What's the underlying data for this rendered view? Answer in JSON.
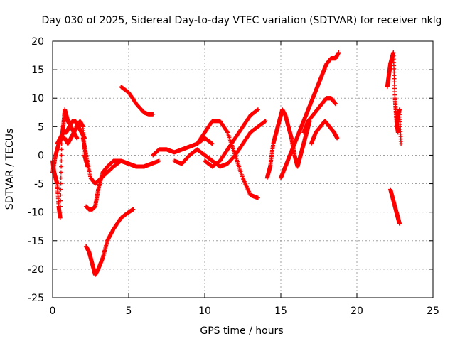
{
  "chart_data": {
    "type": "scatter",
    "title": "Day 030 of 2025, Sidereal Day-to-day VTEC variation (SDTVAR) for receiver nklg",
    "xlabel": "GPS time / hours",
    "ylabel": "SDTVAR / TECUs",
    "xlim": [
      0,
      25
    ],
    "ylim": [
      -25,
      20
    ],
    "xticks": [
      "0",
      "5",
      "10",
      "15",
      "20",
      "25"
    ],
    "yticks": [
      "-25",
      "-20",
      "-15",
      "-10",
      "-5",
      "0",
      "5",
      "10",
      "15",
      "20"
    ],
    "grid": true,
    "legend": "none",
    "marker": "plus",
    "color": "#ff0000",
    "series": [
      {
        "name": "s1",
        "x": [
          0.0,
          0.1,
          0.2,
          0.3,
          0.4,
          0.5,
          0.6,
          0.7,
          0.8,
          0.9,
          1.0,
          1.2,
          1.4,
          1.6,
          1.8,
          2.0,
          2.1,
          2.2,
          2.3
        ],
        "y": [
          -1,
          -3,
          -4,
          -5,
          -9,
          -11,
          3,
          5,
          8,
          7,
          6,
          5,
          4,
          5,
          6,
          5,
          0,
          -1,
          -2
        ]
      },
      {
        "name": "s2",
        "x": [
          0.3,
          0.5,
          0.7,
          0.9,
          1.1,
          1.3,
          1.5,
          1.7,
          1.9,
          2.1
        ],
        "y": [
          2,
          3,
          4,
          4,
          5,
          6,
          6,
          5,
          4,
          3
        ]
      },
      {
        "name": "s3",
        "x": [
          0.0,
          0.2,
          0.4,
          0.6,
          0.8,
          1.0,
          1.2,
          1.4,
          1.6
        ],
        "y": [
          -3,
          0,
          2,
          3,
          3,
          2,
          3,
          4,
          3
        ]
      },
      {
        "name": "s4",
        "x": [
          2.0,
          2.2,
          2.5,
          2.8,
          3.2,
          3.6,
          4.0,
          4.5,
          5.0,
          5.5,
          6.0,
          6.5,
          7.0
        ],
        "y": [
          3,
          0,
          -4,
          -5,
          -4,
          -3,
          -2,
          -1,
          -1.5,
          -2,
          -2,
          -1.5,
          -1
        ]
      },
      {
        "name": "s5",
        "x": [
          2.2,
          2.4,
          2.6,
          2.8,
          3.0,
          3.3,
          3.6,
          4.0,
          4.5,
          5.0,
          5.5,
          6.0,
          6.5
        ],
        "y": [
          -9,
          -9.5,
          -9.5,
          -9,
          -6,
          -3,
          -2,
          -1,
          -1,
          -1.5,
          -2,
          -2,
          -1.5
        ]
      },
      {
        "name": "s6",
        "x": [
          2.2,
          2.4,
          2.6,
          2.8,
          3.0,
          3.3,
          3.6,
          4.0,
          4.5,
          5.0,
          5.3
        ],
        "y": [
          -16,
          -17,
          -19,
          -21,
          -20,
          -18,
          -15,
          -13,
          -11,
          -10,
          -9.5
        ]
      },
      {
        "name": "s7",
        "x": [
          4.5,
          5.0,
          5.5,
          6.0,
          6.3,
          6.6
        ],
        "y": [
          12,
          11,
          9,
          7.5,
          7.2,
          7.2
        ]
      },
      {
        "name": "s8",
        "x": [
          6.6,
          7.0,
          7.5,
          8.0,
          8.5,
          9.0,
          9.5,
          10.0,
          10.5
        ],
        "y": [
          0,
          1,
          1,
          0.5,
          1,
          1.5,
          2,
          3,
          2
        ]
      },
      {
        "name": "s9",
        "x": [
          8.0,
          8.5,
          9.0,
          9.5,
          10.0,
          10.5,
          11.0,
          11.5,
          12.0,
          12.5,
          13.0,
          13.5,
          14.0
        ],
        "y": [
          -1,
          -1.5,
          0,
          1,
          0,
          -1,
          -2,
          -1.5,
          0,
          2,
          4,
          5,
          6
        ]
      },
      {
        "name": "s10",
        "x": [
          9.5,
          10.0,
          10.5,
          11.0,
          11.5,
          12.0,
          12.5,
          13.0,
          13.5
        ],
        "y": [
          2,
          4,
          6,
          6,
          4,
          0,
          -4,
          -7,
          -7.5
        ]
      },
      {
        "name": "s11",
        "x": [
          10.0,
          10.5,
          11.0,
          11.5,
          12.0,
          12.5,
          13.0,
          13.5
        ],
        "y": [
          -1,
          -2,
          -1,
          1,
          3,
          5,
          7,
          8
        ]
      },
      {
        "name": "s12",
        "x": [
          14.1,
          14.3,
          14.5,
          14.7,
          14.9,
          15.1,
          15.3,
          15.5,
          15.7,
          15.9,
          16.1,
          16.3,
          16.5,
          16.7,
          16.9
        ],
        "y": [
          -4,
          -2,
          2,
          4,
          6,
          8,
          7,
          5,
          3,
          0,
          -2,
          0,
          2,
          4,
          6
        ]
      },
      {
        "name": "s13",
        "x": [
          15.0,
          15.3,
          15.6,
          15.9,
          16.2,
          16.5,
          16.8,
          17.1,
          17.4,
          17.7,
          18.0,
          18.3,
          18.6,
          18.8
        ],
        "y": [
          -4,
          -2,
          0,
          2,
          4,
          6,
          8,
          10,
          12,
          14,
          16,
          17,
          17,
          18
        ]
      },
      {
        "name": "s14",
        "x": [
          16.5,
          16.8,
          17.1,
          17.4,
          17.7,
          18.0,
          18.3,
          18.6
        ],
        "y": [
          4,
          6,
          7,
          8,
          9,
          10,
          10,
          9
        ]
      },
      {
        "name": "s15",
        "x": [
          17.0,
          17.3,
          17.6,
          17.9,
          18.2,
          18.5,
          18.7
        ],
        "y": [
          2,
          4,
          5,
          6,
          5,
          4,
          3
        ]
      },
      {
        "name": "s16",
        "x": [
          22.0,
          22.1,
          22.2,
          22.3,
          22.4,
          22.5,
          22.6,
          22.7
        ],
        "y": [
          12,
          14,
          16,
          17,
          18,
          10,
          6,
          4
        ]
      },
      {
        "name": "s17",
        "x": [
          22.2,
          22.4,
          22.6,
          22.7,
          22.8
        ],
        "y": [
          -6,
          -8,
          -10,
          -11,
          -12
        ]
      },
      {
        "name": "s18",
        "x": [
          22.6,
          22.7,
          22.8,
          22.9
        ],
        "y": [
          5,
          7,
          8,
          2
        ]
      }
    ]
  }
}
